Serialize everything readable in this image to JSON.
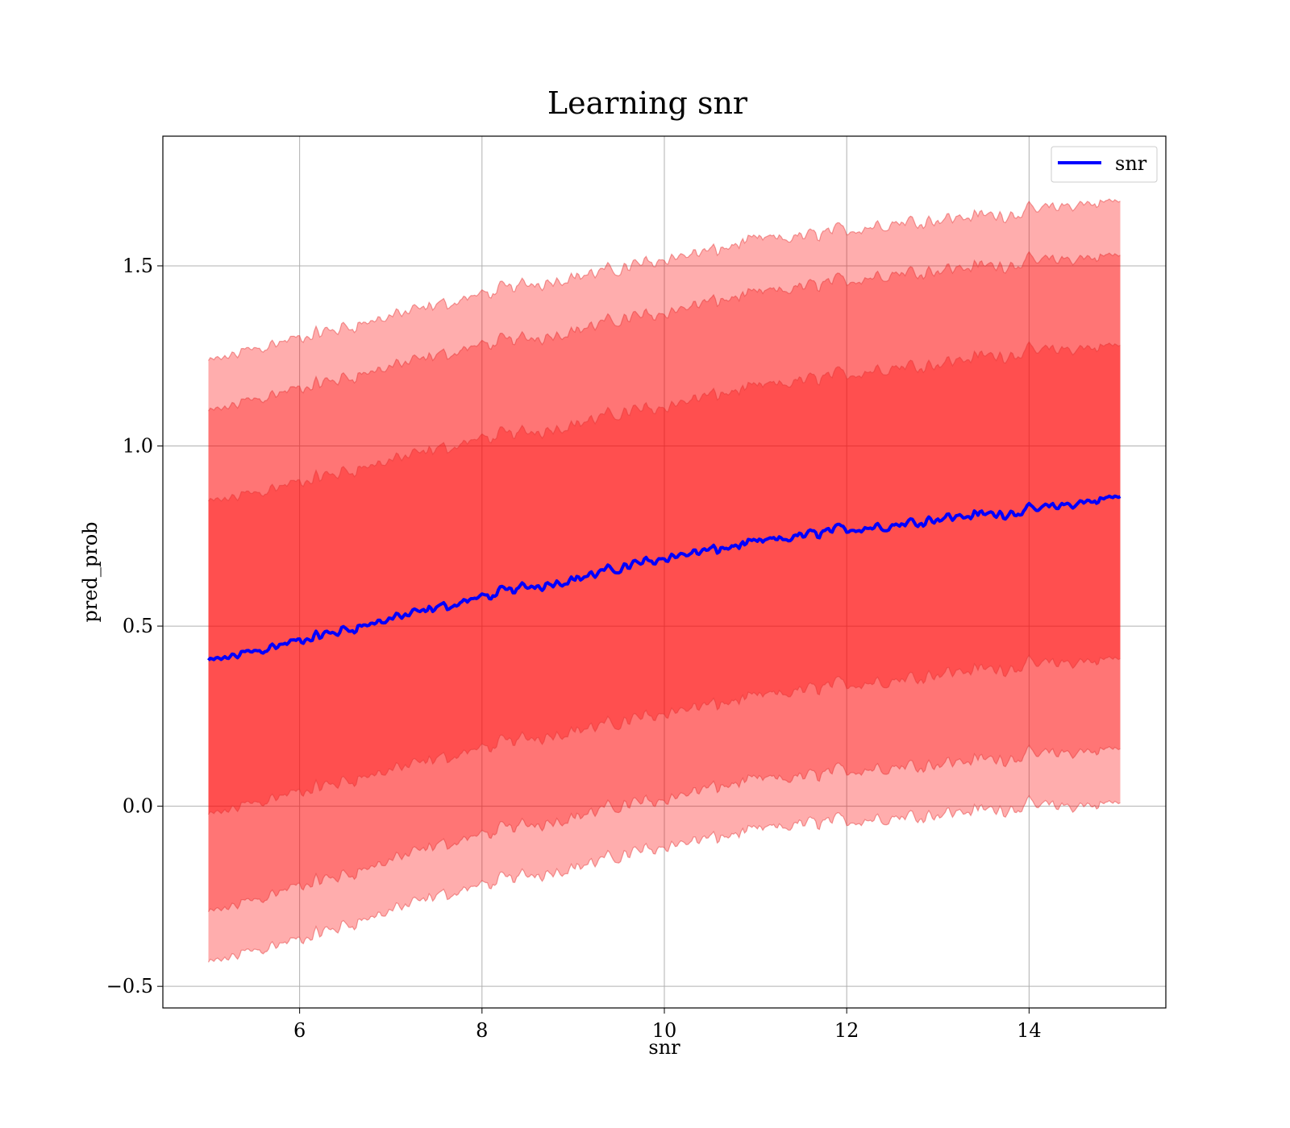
{
  "chart_data": {
    "type": "line",
    "title": "Learning snr",
    "xlabel": "snr",
    "ylabel": "pred_prob",
    "xlim": [
      4.5,
      15.5
    ],
    "ylim": [
      -0.56,
      1.86
    ],
    "grid": true,
    "legend": {
      "placement": "top-right",
      "entries": [
        "snr"
      ]
    },
    "x_ticks": [
      {
        "value": 6,
        "label": "6"
      },
      {
        "value": 8,
        "label": "8"
      },
      {
        "value": 10,
        "label": "10"
      },
      {
        "value": 12,
        "label": "12"
      },
      {
        "value": 14,
        "label": "14"
      }
    ],
    "y_ticks": [
      {
        "value": -0.5,
        "label": "−0.5"
      },
      {
        "value": 0.0,
        "label": "0.0"
      },
      {
        "value": 0.5,
        "label": "0.5"
      },
      {
        "value": 1.0,
        "label": "1.0"
      },
      {
        "value": 1.5,
        "label": "1.5"
      }
    ],
    "colors": {
      "line": "#0000ff",
      "band": "#ff0000",
      "band_edge": "#e03030"
    },
    "x": [
      5,
      5.5,
      6,
      6.5,
      7,
      7.5,
      8,
      8.5,
      9,
      9.5,
      10,
      10.5,
      11,
      11.5,
      12,
      12.5,
      13,
      13.5,
      14,
      14.5,
      15
    ],
    "series": [
      {
        "name": "snr",
        "values": [
          0.4,
          0.43,
          0.46,
          0.49,
          0.52,
          0.55,
          0.58,
          0.61,
          0.63,
          0.66,
          0.69,
          0.71,
          0.73,
          0.75,
          0.77,
          0.78,
          0.8,
          0.81,
          0.82,
          0.84,
          0.86
        ]
      }
    ],
    "bands": [
      {
        "lower": [
          -0.44,
          -0.4,
          -0.37,
          -0.33,
          -0.29,
          -0.25,
          -0.22,
          -0.19,
          -0.17,
          -0.14,
          -0.11,
          -0.09,
          -0.07,
          -0.05,
          -0.04,
          -0.03,
          -0.02,
          -0.01,
          0.0,
          0.0,
          0.01
        ],
        "upper": [
          1.23,
          1.27,
          1.3,
          1.33,
          1.36,
          1.39,
          1.42,
          1.45,
          1.47,
          1.49,
          1.52,
          1.54,
          1.57,
          1.58,
          1.6,
          1.62,
          1.63,
          1.64,
          1.65,
          1.67,
          1.68
        ]
      },
      {
        "lower": [
          -0.3,
          -0.26,
          -0.22,
          -0.19,
          -0.15,
          -0.11,
          -0.08,
          -0.05,
          -0.03,
          0.0,
          0.02,
          0.05,
          0.07,
          0.08,
          0.1,
          0.11,
          0.12,
          0.13,
          0.14,
          0.15,
          0.16
        ],
        "upper": [
          1.09,
          1.13,
          1.16,
          1.19,
          1.22,
          1.25,
          1.28,
          1.3,
          1.32,
          1.35,
          1.37,
          1.4,
          1.42,
          1.44,
          1.46,
          1.48,
          1.49,
          1.5,
          1.51,
          1.52,
          1.53
        ]
      },
      {
        "lower": [
          -0.03,
          0.01,
          0.04,
          0.07,
          0.1,
          0.13,
          0.16,
          0.19,
          0.21,
          0.23,
          0.26,
          0.28,
          0.3,
          0.32,
          0.34,
          0.35,
          0.37,
          0.38,
          0.39,
          0.4,
          0.41
        ],
        "upper": [
          0.84,
          0.87,
          0.9,
          0.93,
          0.96,
          0.99,
          1.02,
          1.04,
          1.06,
          1.09,
          1.11,
          1.14,
          1.16,
          1.18,
          1.2,
          1.22,
          1.23,
          1.25,
          1.26,
          1.27,
          1.28
        ]
      }
    ]
  }
}
